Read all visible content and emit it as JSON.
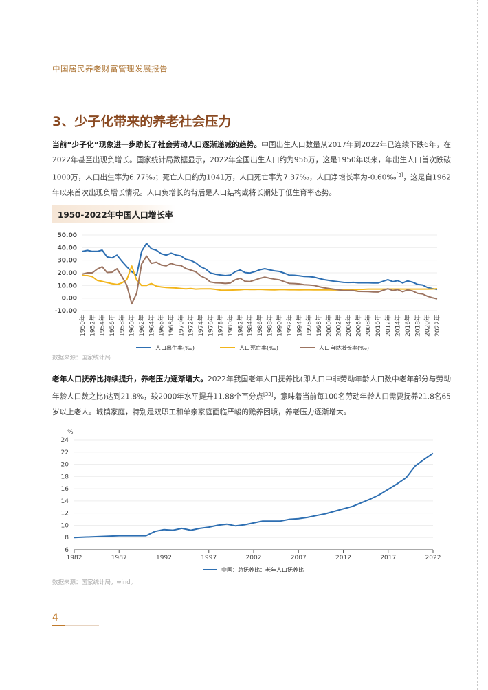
{
  "header": {
    "running_title": "中国居民养老财富管理发展报告"
  },
  "section": {
    "title": "3、少子化带来的养老社会压力"
  },
  "paragraph1": {
    "lead": "当前“少子化”现象进一步助长了社会劳动人口逐渐递减的趋势。",
    "body": "中国出生人口数量从2017年到2022年已连续下跌6年，在2022年甚至出现负增长。国家统计局数据显示，2022年全国出生人口约为956万，这是1950年以来，年出生人口首次跌破1000万，人口出生率为6.77‰；死亡人口约为1041万，人口死亡率为7.37‰，人口净增长率为-0.60‰",
    "footnote": "[3]",
    "tail": "，这是自1962年以来首次出现负增长情况。人口负增长的背后是人口结构或将长期处于低生育率态势。"
  },
  "chart1": {
    "heading": "1950-2022年中国人口增长率",
    "source": "数据来源：国家统计局"
  },
  "paragraph2": {
    "lead": "老年人口抚养比持续提升，养老压力逐渐增大。",
    "body": "2022年我国老年人口抚养比(即人口中非劳动年龄人口数中老年部分与劳动年龄人口数之比)达到21.8%，较2000年水平提升11.88个百分点",
    "footnote": "[33]",
    "tail": "，意味着当前每100名劳动年龄人口需要抚养21.8名65岁以上老人。城镇家庭，特别是双职工和单亲家庭面临严峻的赡养困境，养老压力逐渐增大。"
  },
  "chart2": {
    "source": "数据来源：国家统计局，wind。"
  },
  "page": {
    "number": "4"
  },
  "chart_data": [
    {
      "type": "line",
      "title": "1950-2022年中国人口增长率",
      "ylim": [
        -10,
        50
      ],
      "yticks": [
        "-10.00",
        "0.00",
        "10.00",
        "20.00",
        "30.00",
        "40.00",
        "50.00"
      ],
      "x_tick_labels": [
        "1950年",
        "1952年",
        "1954年",
        "1956年",
        "1958年",
        "1960年",
        "1962年",
        "1964年",
        "1966年",
        "1968年",
        "1970年",
        "1972年",
        "1974年",
        "1976年",
        "1978年",
        "1980年",
        "1982年",
        "1984年",
        "1986年",
        "1988年",
        "1990年",
        "1992年",
        "1994年",
        "1996年",
        "1998年",
        "2000年",
        "2002年",
        "2004年",
        "2006年",
        "2008年",
        "2010年",
        "2012年",
        "2014年",
        "2016年",
        "2018年",
        "2020年",
        "2022年"
      ],
      "x": [
        1950,
        1951,
        1952,
        1953,
        1954,
        1955,
        1956,
        1957,
        1958,
        1959,
        1960,
        1961,
        1962,
        1963,
        1964,
        1965,
        1966,
        1967,
        1968,
        1969,
        1970,
        1971,
        1972,
        1973,
        1974,
        1975,
        1976,
        1977,
        1978,
        1979,
        1980,
        1981,
        1982,
        1983,
        1984,
        1985,
        1986,
        1987,
        1988,
        1989,
        1990,
        1991,
        1992,
        1993,
        1994,
        1995,
        1996,
        1997,
        1998,
        1999,
        2000,
        2001,
        2002,
        2003,
        2004,
        2005,
        2006,
        2007,
        2008,
        2009,
        2010,
        2011,
        2012,
        2013,
        2014,
        2015,
        2016,
        2017,
        2018,
        2019,
        2020,
        2021,
        2022
      ],
      "legend_position": "bottom",
      "series": [
        {
          "name": "人口出生率(‰)",
          "color": "#2e6fb2",
          "values": [
            37.0,
            37.8,
            37.0,
            37.0,
            38.0,
            32.6,
            31.9,
            34.0,
            29.2,
            24.8,
            20.9,
            18.0,
            37.0,
            43.4,
            39.1,
            37.9,
            35.1,
            34.0,
            35.6,
            34.1,
            33.4,
            30.7,
            29.8,
            27.9,
            24.8,
            23.0,
            19.9,
            18.9,
            18.3,
            17.8,
            18.2,
            20.9,
            22.3,
            20.2,
            19.9,
            21.0,
            22.4,
            23.3,
            22.4,
            21.6,
            21.1,
            19.7,
            18.2,
            18.1,
            17.7,
            17.1,
            17.0,
            16.6,
            15.6,
            14.6,
            14.0,
            13.4,
            12.9,
            12.4,
            12.3,
            12.4,
            12.1,
            12.1,
            12.1,
            12.0,
            11.9,
            13.3,
            14.6,
            13.0,
            13.8,
            12.0,
            13.6,
            12.6,
            10.9,
            10.4,
            8.5,
            7.5,
            6.8
          ]
        },
        {
          "name": "人口死亡率(‰)",
          "color": "#f2b51c",
          "values": [
            18.0,
            17.8,
            17.0,
            14.0,
            13.2,
            12.3,
            11.4,
            10.8,
            12.0,
            14.6,
            25.4,
            14.2,
            10.0,
            10.0,
            11.5,
            9.5,
            8.8,
            8.4,
            8.2,
            8.0,
            7.6,
            7.3,
            7.6,
            7.1,
            7.3,
            7.3,
            7.3,
            6.9,
            6.3,
            6.2,
            6.3,
            6.4,
            6.6,
            6.9,
            6.8,
            6.8,
            6.9,
            6.7,
            6.6,
            6.5,
            6.7,
            6.7,
            6.6,
            6.6,
            6.5,
            6.6,
            6.6,
            6.5,
            6.5,
            6.5,
            6.5,
            6.4,
            6.4,
            6.4,
            6.4,
            6.5,
            6.8,
            6.9,
            7.1,
            7.1,
            7.1,
            7.1,
            7.2,
            7.2,
            7.2,
            7.1,
            7.1,
            7.1,
            7.1,
            7.1,
            7.1,
            7.2,
            7.4
          ]
        },
        {
          "name": "人口自然增长率(‰)",
          "color": "#9c7461",
          "values": [
            19.0,
            20.0,
            20.0,
            23.0,
            24.8,
            20.3,
            20.5,
            23.2,
            17.2,
            10.2,
            -4.6,
            3.8,
            27.0,
            33.3,
            27.6,
            28.4,
            26.2,
            25.5,
            27.4,
            26.1,
            25.8,
            23.4,
            22.2,
            20.8,
            17.5,
            15.7,
            12.7,
            12.1,
            12.0,
            11.6,
            11.9,
            14.5,
            15.7,
            13.3,
            13.1,
            14.3,
            15.6,
            16.6,
            15.7,
            15.0,
            14.4,
            13.0,
            11.6,
            11.5,
            11.2,
            10.6,
            10.4,
            10.1,
            9.1,
            8.2,
            7.6,
            7.0,
            6.5,
            6.0,
            5.9,
            5.9,
            5.3,
            5.2,
            5.1,
            4.9,
            4.8,
            6.1,
            7.4,
            5.9,
            6.7,
            5.0,
            6.5,
            5.6,
            3.8,
            3.3,
            1.5,
            0.3,
            -0.6
          ]
        }
      ]
    },
    {
      "type": "line",
      "ylabel": "%",
      "ylim": [
        6,
        24
      ],
      "yticks": [
        "6",
        "8",
        "10",
        "12",
        "14",
        "16",
        "18",
        "20",
        "22",
        "24"
      ],
      "x_tick_labels": [
        "1982",
        "1987",
        "1992",
        "1997",
        "2002",
        "2007",
        "2012",
        "2017",
        "2022"
      ],
      "x": [
        1982,
        1987,
        1990,
        1991,
        1992,
        1993,
        1994,
        1995,
        1996,
        1997,
        1998,
        1999,
        2000,
        2001,
        2002,
        2003,
        2004,
        2005,
        2006,
        2007,
        2008,
        2009,
        2010,
        2011,
        2012,
        2013,
        2014,
        2015,
        2016,
        2017,
        2018,
        2019,
        2020,
        2021,
        2022
      ],
      "legend_position": "bottom",
      "series": [
        {
          "name": "中国：总抚养比：老年人口抚养比",
          "color": "#2e6fb2",
          "values": [
            8.0,
            8.3,
            8.3,
            9.0,
            9.3,
            9.2,
            9.5,
            9.2,
            9.5,
            9.7,
            10.0,
            10.2,
            9.9,
            10.1,
            10.4,
            10.7,
            10.7,
            10.7,
            11.0,
            11.1,
            11.3,
            11.6,
            11.9,
            12.3,
            12.7,
            13.1,
            13.7,
            14.3,
            15.0,
            15.9,
            16.8,
            17.8,
            19.7,
            20.8,
            21.8
          ]
        }
      ]
    }
  ]
}
